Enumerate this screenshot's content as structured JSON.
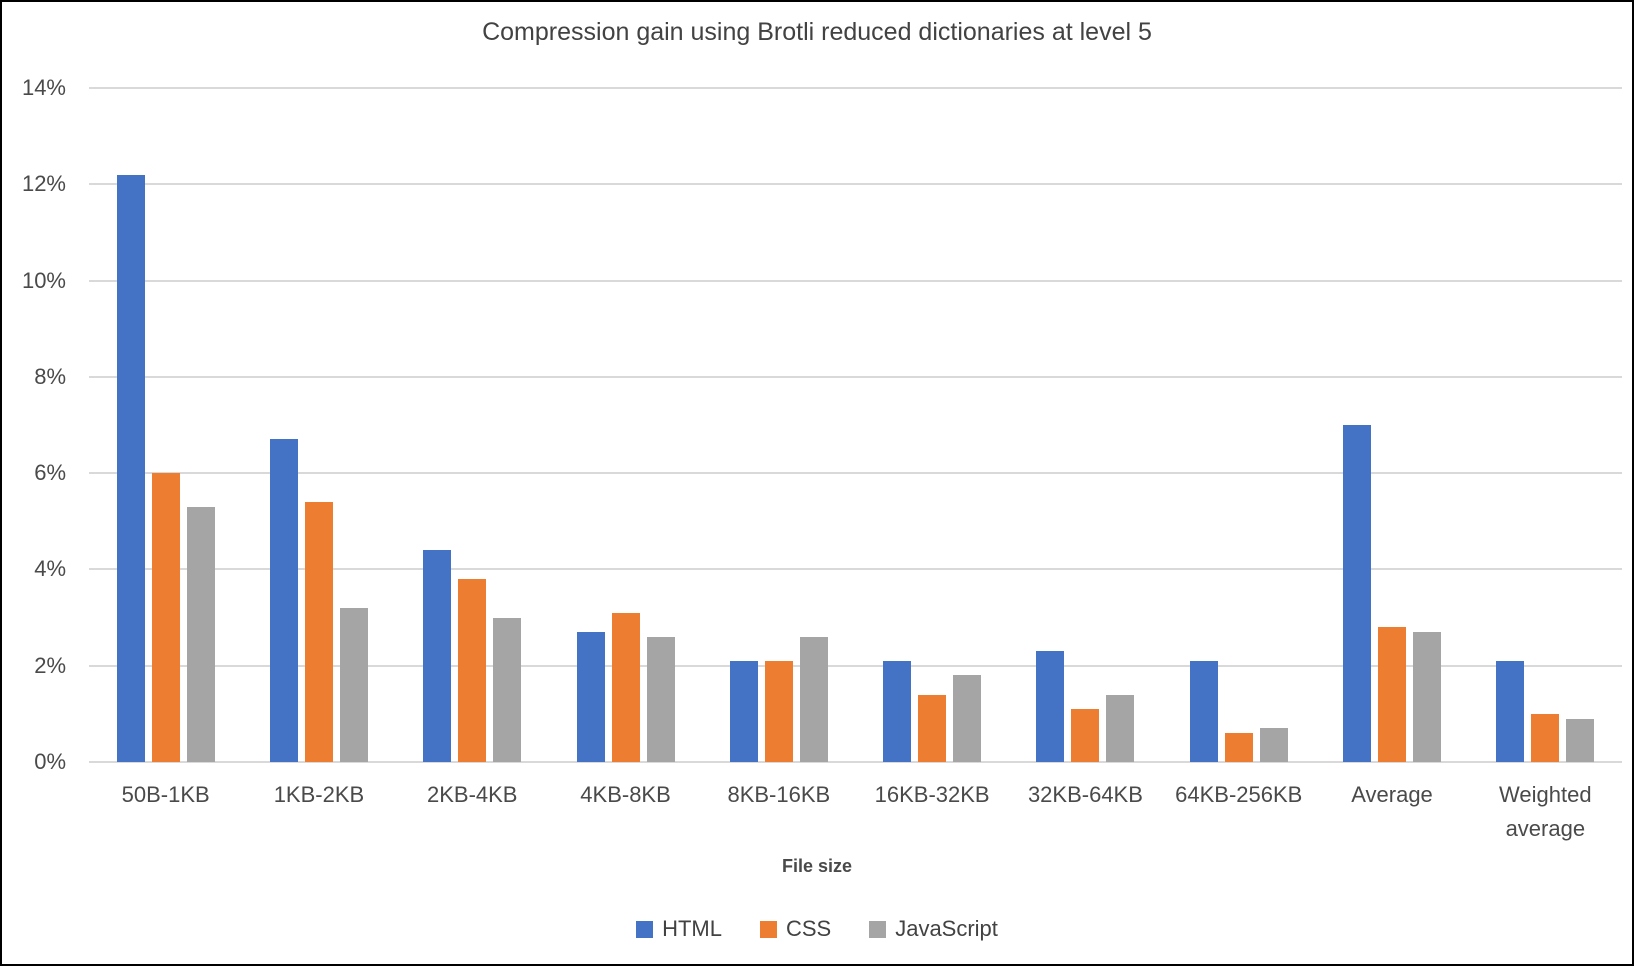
{
  "title": "Compression gain using Brotli reduced dictionaries at level 5",
  "chart_data": {
    "type": "bar",
    "title": "Compression gain using Brotli reduced dictionaries at level 5",
    "categories": [
      "50B-1KB",
      "1KB-2KB",
      "2KB-4KB",
      "4KB-8KB",
      "8KB-16KB",
      "16KB-32KB",
      "32KB-64KB",
      "64KB-256KB",
      "Average",
      "Weighted average"
    ],
    "series": [
      {
        "name": "HTML",
        "color": "#4472C4",
        "values": [
          12.2,
          6.7,
          4.4,
          2.7,
          2.1,
          2.1,
          2.3,
          2.1,
          7.0,
          2.1
        ]
      },
      {
        "name": "CSS",
        "color": "#ED7D31",
        "values": [
          6.0,
          5.4,
          3.8,
          3.1,
          2.1,
          1.4,
          1.1,
          0.6,
          2.8,
          1.0
        ]
      },
      {
        "name": "JavaScript",
        "color": "#A5A5A5",
        "values": [
          5.3,
          3.2,
          3.0,
          2.6,
          2.6,
          1.8,
          1.4,
          0.7,
          2.7,
          0.9
        ]
      }
    ],
    "xlabel": "File size",
    "ylabel": "",
    "ylim": [
      0,
      14
    ],
    "ytick_step": 2,
    "ytick_labels": [
      "0%",
      "2%",
      "4%",
      "6%",
      "8%",
      "10%",
      "12%",
      "14%"
    ],
    "grid": true,
    "gridline_color": "#d9d9d9",
    "legend_position": "bottom"
  }
}
